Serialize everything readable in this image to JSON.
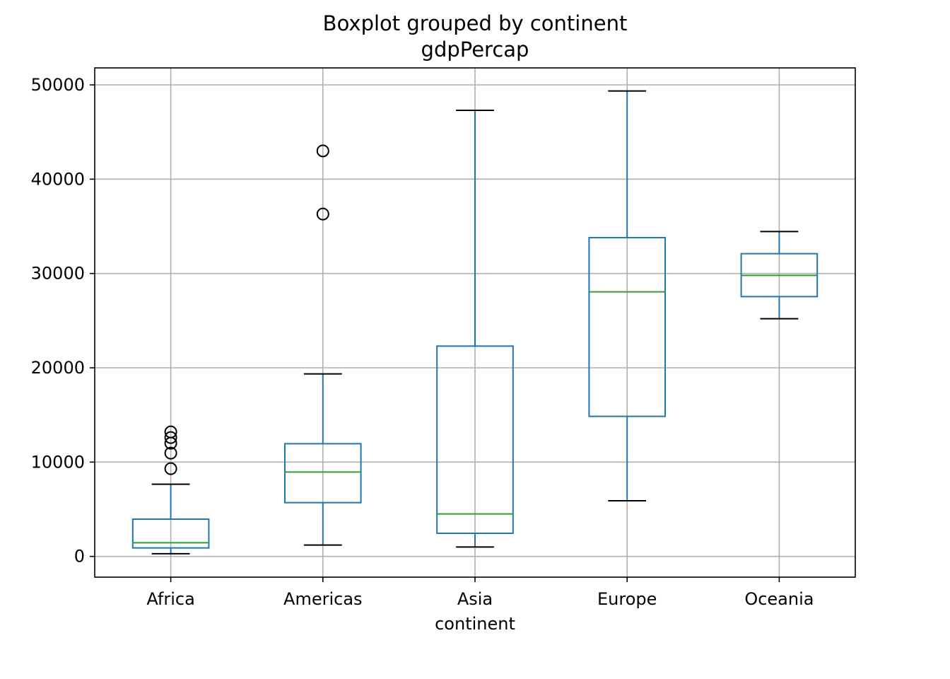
{
  "chart_data": {
    "type": "box",
    "title": "Boxplot grouped by continent",
    "subtitle": "gdpPercap",
    "xlabel": "continent",
    "ylabel": "",
    "ylim": [
      -2200,
      51800
    ],
    "yticks": [
      "0",
      "10000",
      "20000",
      "30000",
      "40000",
      "50000"
    ],
    "grid": true,
    "colors": {
      "box": "#1f77b4",
      "median": "#2ca02c",
      "cap": "#000000",
      "flier": "#000000",
      "grid": "#b0b0b0"
    },
    "categories": [
      "Africa",
      "Americas",
      "Asia",
      "Europe",
      "Oceania"
    ],
    "series": [
      {
        "q1": 900,
        "median": 1450,
        "q3": 3950,
        "whisker_low": 280,
        "whisker_high": 7650,
        "outliers": [
          9300,
          10950,
          12000,
          12600,
          13200
        ]
      },
      {
        "q1": 5700,
        "median": 8950,
        "q3": 11950,
        "whisker_low": 1200,
        "whisker_high": 19350,
        "outliers": [
          36300,
          43000
        ]
      },
      {
        "q1": 2450,
        "median": 4500,
        "q3": 22300,
        "whisker_low": 1000,
        "whisker_high": 47300,
        "outliers": []
      },
      {
        "q1": 14850,
        "median": 28050,
        "q3": 33800,
        "whisker_low": 5900,
        "whisker_high": 49350,
        "outliers": []
      },
      {
        "q1": 27550,
        "median": 29800,
        "q3": 32100,
        "whisker_low": 25200,
        "whisker_high": 34450,
        "outliers": []
      }
    ]
  }
}
